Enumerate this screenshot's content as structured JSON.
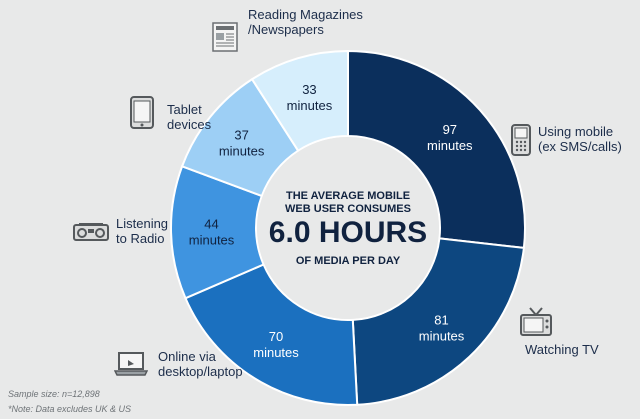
{
  "chart_data": {
    "type": "pie",
    "title": "",
    "center": {
      "line1": "THE AVERAGE MOBILE",
      "line2": "WEB USER CONSUMES",
      "headline": "6.0 HOURS",
      "line3": "OF MEDIA PER DAY"
    },
    "total_minutes": 362,
    "unit": "minutes",
    "slices": [
      {
        "label": "Using mobile (ex SMS/calls)",
        "value": 97,
        "value_label": "97",
        "color": "#0b2f5c",
        "text_color": "#ffffff",
        "icon": "mobile-phone-icon"
      },
      {
        "label": "Watching TV",
        "value": 81,
        "value_label": "81",
        "color": "#0d4780",
        "text_color": "#ffffff",
        "icon": "tv-icon"
      },
      {
        "label": "Online via desktop/laptop",
        "value": 70,
        "value_label": "70",
        "color": "#1b70bf",
        "text_color": "#ffffff",
        "icon": "laptop-icon"
      },
      {
        "label": "Listening to Radio",
        "value": 44,
        "value_label": "44",
        "color": "#3f94e0",
        "text_color": "#10223f",
        "icon": "radio-icon"
      },
      {
        "label": "Tablet devices",
        "value": 37,
        "value_label": "37",
        "color": "#9dcff5",
        "text_color": "#10223f",
        "icon": "tablet-icon"
      },
      {
        "label": "Reading Magazines /Newspapers",
        "value": 33,
        "value_label": "33",
        "color": "#d6eefc",
        "text_color": "#10223f",
        "icon": "newspaper-icon"
      }
    ]
  },
  "outside_labels": {
    "mobile": [
      "Using mobile",
      "(ex SMS/calls)"
    ],
    "tv": [
      "Watching TV"
    ],
    "online": [
      "Online via",
      "desktop/laptop"
    ],
    "radio": [
      "Listening",
      "to Radio"
    ],
    "tablet": [
      "Tablet",
      "devices"
    ],
    "magazines": [
      "Reading Magazines",
      "/Newspapers"
    ]
  },
  "footnotes": {
    "sample": "Sample size: n=12,898",
    "note": "*Note: Data excludes UK & US"
  },
  "colors": {
    "background": "#e8e9e9",
    "center_disc": "#e8e9e9",
    "headline": "#10223f",
    "text_dark": "#10223f"
  }
}
